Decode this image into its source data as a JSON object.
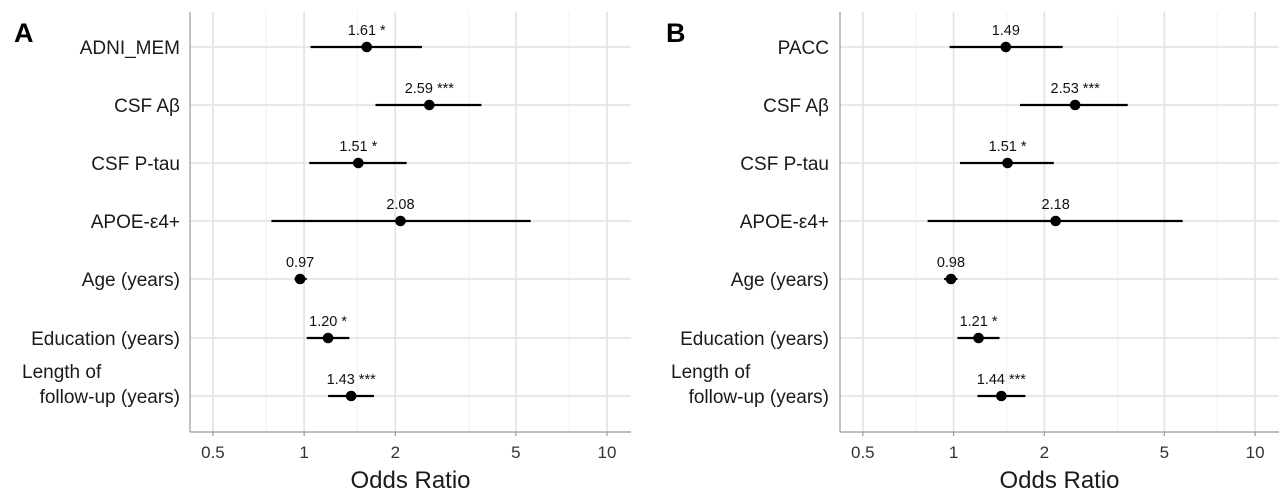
{
  "chart_data": [
    {
      "type": "forest",
      "panel_label": "A",
      "xlabel": "Odds Ratio",
      "x_scale": "log",
      "xlim": [
        0.42,
        12
      ],
      "xticks": [
        0.5,
        1,
        2,
        5,
        10
      ],
      "xtick_labels": [
        "0.5",
        "1",
        "2",
        "5",
        "10"
      ],
      "grid": true,
      "rows": [
        {
          "label": "ADNI_MEM",
          "or": 1.61,
          "ci": [
            1.05,
            2.45
          ],
          "annotation": "1.61 *"
        },
        {
          "label": "CSF Aβ",
          "or": 2.59,
          "ci": [
            1.72,
            3.85
          ],
          "annotation": "2.59 ***"
        },
        {
          "label": "CSF P-tau",
          "or": 1.51,
          "ci": [
            1.04,
            2.18
          ],
          "annotation": "1.51 *"
        },
        {
          "label": "APOE-ε4+",
          "or": 2.08,
          "ci": [
            0.78,
            5.6
          ],
          "annotation": "2.08"
        },
        {
          "label": "Age (years)",
          "or": 0.97,
          "ci": [
            0.93,
            1.02
          ],
          "annotation": "0.97"
        },
        {
          "label": "Education (years)",
          "or": 1.2,
          "ci": [
            1.02,
            1.41
          ],
          "annotation": "1.20 *"
        },
        {
          "label": "Length of\nfollow-up (years)",
          "or": 1.43,
          "ci": [
            1.2,
            1.7
          ],
          "annotation": "1.43 ***"
        }
      ]
    },
    {
      "type": "forest",
      "panel_label": "B",
      "xlabel": "Odds Ratio",
      "x_scale": "log",
      "xlim": [
        0.42,
        12
      ],
      "xticks": [
        0.5,
        1,
        2,
        5,
        10
      ],
      "xtick_labels": [
        "0.5",
        "1",
        "2",
        "5",
        "10"
      ],
      "grid": true,
      "rows": [
        {
          "label": "PACC",
          "or": 1.49,
          "ci": [
            0.97,
            2.3
          ],
          "annotation": "1.49"
        },
        {
          "label": "CSF Aβ",
          "or": 2.53,
          "ci": [
            1.66,
            3.78
          ],
          "annotation": "2.53 ***"
        },
        {
          "label": "CSF P-tau",
          "or": 1.51,
          "ci": [
            1.05,
            2.15
          ],
          "annotation": "1.51 *"
        },
        {
          "label": "APOE-ε4+",
          "or": 2.18,
          "ci": [
            0.82,
            5.75
          ],
          "annotation": "2.18"
        },
        {
          "label": "Age (years)",
          "or": 0.98,
          "ci": [
            0.93,
            1.03
          ],
          "annotation": "0.98"
        },
        {
          "label": "Education (years)",
          "or": 1.21,
          "ci": [
            1.03,
            1.42
          ],
          "annotation": "1.21 *"
        },
        {
          "label": "Length of\nfollow-up (years)",
          "or": 1.44,
          "ci": [
            1.2,
            1.73
          ],
          "annotation": "1.44 ***"
        }
      ]
    }
  ]
}
